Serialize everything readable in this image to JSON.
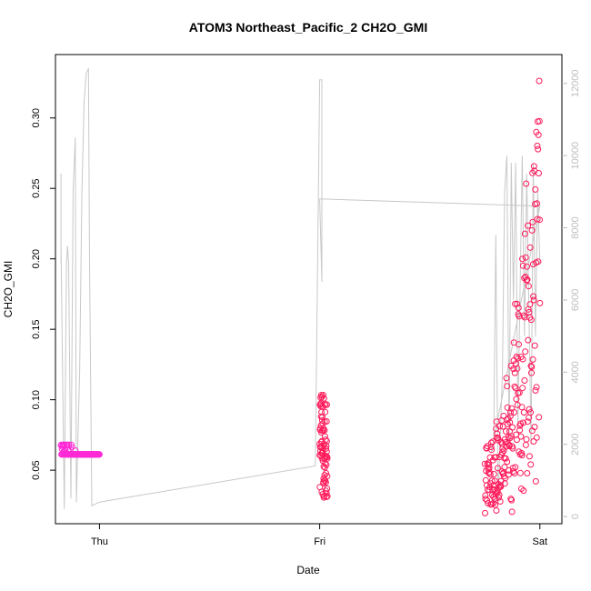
{
  "chart_data": {
    "type": "scatter",
    "title": "ATOM3 Northeast_Pacific_2 CH2O_GMI",
    "xlabel": "Date",
    "ylabel": "CH2O_GMI",
    "x_axis": {
      "type": "date",
      "ticks": [
        {
          "value": "Thu",
          "day": 0
        },
        {
          "value": "Fri",
          "day": 1
        },
        {
          "value": "Sat",
          "day": 2
        }
      ],
      "range_days": [
        -0.2,
        2.1
      ]
    },
    "y_axis_left": {
      "range": [
        0.012,
        0.345
      ],
      "ticks": [
        0.05,
        0.1,
        0.15,
        0.2,
        0.25,
        0.3
      ],
      "tick_labels": [
        "0.05",
        "0.10",
        "0.15",
        "0.20",
        "0.25",
        "0.30"
      ]
    },
    "y_axis_right": {
      "range": [
        -200,
        12800
      ],
      "ticks": [
        0,
        2000,
        4000,
        6000,
        8000,
        10000,
        12000
      ],
      "tick_labels": [
        "0",
        "2000",
        "4000",
        "6000",
        "8000",
        "10000",
        "12000"
      ],
      "color": "#bdbdbd"
    },
    "series": [
      {
        "role": "altitude",
        "axis": "right",
        "style": "line",
        "color": "#c8c8c8",
        "points": [
          [
            -0.175,
            7000
          ],
          [
            -0.175,
            9500
          ],
          [
            -0.175,
            7500
          ],
          [
            -0.16,
            200
          ],
          [
            -0.15,
            7000
          ],
          [
            -0.145,
            7500
          ],
          [
            -0.14,
            7000
          ],
          [
            -0.13,
            500
          ],
          [
            -0.12,
            9000
          ],
          [
            -0.11,
            10500
          ],
          [
            -0.105,
            400
          ],
          [
            -0.09,
            4000
          ],
          [
            -0.08,
            9000
          ],
          [
            -0.07,
            11500
          ],
          [
            -0.06,
            12300
          ],
          [
            -0.05,
            12400
          ],
          [
            -0.045,
            7000
          ],
          [
            -0.035,
            300
          ],
          [
            0.0,
            400
          ],
          [
            0.98,
            1400
          ],
          [
            1.0,
            12100
          ],
          [
            1.01,
            12100
          ],
          [
            1.01,
            6500
          ],
          [
            1.0,
            8800
          ],
          [
            2.0,
            8600
          ],
          [
            1.78,
            1800
          ],
          [
            1.79,
            1900
          ],
          [
            1.8,
            7800
          ],
          [
            1.81,
            400
          ],
          [
            1.83,
            4000
          ],
          [
            1.84,
            9000
          ],
          [
            1.85,
            10000
          ],
          [
            1.86,
            2000
          ],
          [
            1.87,
            9800
          ],
          [
            1.88,
            6000
          ],
          [
            1.89,
            9800
          ],
          [
            1.9,
            2500
          ],
          [
            1.92,
            10000
          ],
          [
            1.93,
            5000
          ],
          [
            1.94,
            9500
          ],
          [
            1.96,
            2000
          ],
          [
            1.97,
            9800
          ],
          [
            1.98,
            5000
          ],
          [
            1.99,
            9000
          ],
          [
            2.0,
            7000
          ]
        ]
      },
      {
        "role": "CH2O_GMI",
        "axis": "left",
        "style": "points",
        "color_start": "#ff2bd6",
        "color_end": "#ff1a5a",
        "segments": [
          {
            "x_start": -0.175,
            "x_end": -0.0,
            "y_start": 0.068,
            "y_end": 0.021,
            "count": 160
          },
          {
            "x_start": 1.0,
            "x_end": 1.035,
            "y_start": 0.029,
            "y_end": 0.104,
            "count": 80
          },
          {
            "x_start": 1.75,
            "x_end": 2.0,
            "y_start": 0.018,
            "y_end": 0.337,
            "count": 230
          }
        ]
      }
    ],
    "grid": false,
    "legend": "none"
  }
}
